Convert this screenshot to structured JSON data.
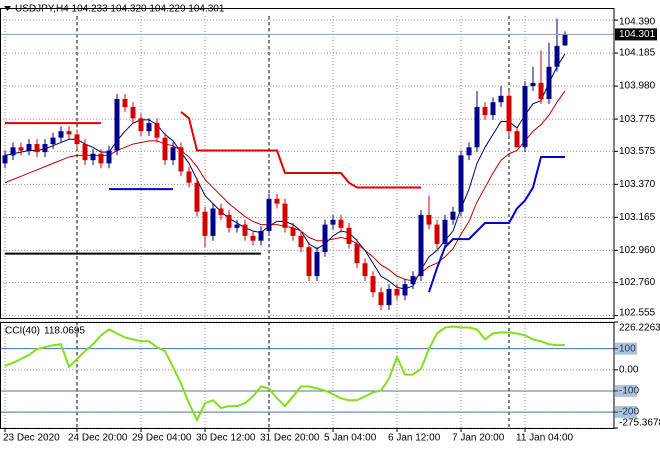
{
  "chart_data": [
    {
      "type": "candlestick",
      "title": "USDJPY,H4 104.233 104.320 104.229 104.301",
      "categories": [
        "23 Dec 2020",
        null,
        null,
        null,
        null,
        null,
        null,
        null,
        null,
        "24 Dec 20:00",
        null,
        null,
        null,
        null,
        null,
        null,
        null,
        "29 Dec 04:00",
        null,
        null,
        null,
        null,
        null,
        null,
        null,
        "30 Dec 12:00",
        null,
        null,
        null,
        null,
        null,
        null,
        null,
        "31 Dec 20:00",
        null,
        null,
        null,
        null,
        null,
        null,
        null,
        "5 Jan 04:00",
        null,
        null,
        null,
        null,
        null,
        null,
        null,
        "6 Jan 12:00",
        null,
        null,
        null,
        null,
        null,
        null,
        null,
        "7 Jan 20:00",
        null,
        null,
        null,
        null,
        null,
        null,
        null,
        "11 Jan 04:00",
        null,
        null,
        null,
        null,
        null
      ],
      "open": [
        103.5,
        103.55,
        103.6,
        103.58,
        103.62,
        103.57,
        103.62,
        103.66,
        103.7,
        103.68,
        103.62,
        103.52,
        103.56,
        103.5,
        103.58,
        103.9,
        103.85,
        103.78,
        103.7,
        103.75,
        103.66,
        103.52,
        103.6,
        103.45,
        103.38,
        103.2,
        103.05,
        103.22,
        103.18,
        103.1,
        103.12,
        103.05,
        103.02,
        103.08,
        103.28,
        103.25,
        103.1,
        103.05,
        102.98,
        102.8,
        102.95,
        103.12,
        103.15,
        103.1,
        103.0,
        102.88,
        102.8,
        102.7,
        102.62,
        102.72,
        102.68,
        102.75,
        102.8,
        103.18,
        103.12,
        103.0,
        103.15,
        103.2,
        103.55,
        103.6,
        103.85,
        103.8,
        103.88,
        103.92,
        103.7,
        103.6,
        103.98,
        104.0,
        103.9,
        104.1,
        104.233
      ],
      "high": [
        103.58,
        103.63,
        103.63,
        103.65,
        103.65,
        103.65,
        103.69,
        103.73,
        103.73,
        103.71,
        103.65,
        103.59,
        103.59,
        103.61,
        103.93,
        103.93,
        103.88,
        103.81,
        103.78,
        103.78,
        103.69,
        103.63,
        103.63,
        103.48,
        103.41,
        103.23,
        103.25,
        103.25,
        103.21,
        103.15,
        103.15,
        103.08,
        103.11,
        103.31,
        103.31,
        103.28,
        103.13,
        103.08,
        103.01,
        102.98,
        103.15,
        103.18,
        103.18,
        103.13,
        103.03,
        102.91,
        102.83,
        102.73,
        102.75,
        102.75,
        102.78,
        102.83,
        103.21,
        103.3,
        103.15,
        103.18,
        103.23,
        103.58,
        103.63,
        103.95,
        103.88,
        103.91,
        103.98,
        103.95,
        103.73,
        104.01,
        104.1,
        104.2,
        104.25,
        104.4,
        104.32
      ],
      "low": [
        103.47,
        103.52,
        103.55,
        103.55,
        103.54,
        103.54,
        103.59,
        103.63,
        103.65,
        103.59,
        103.49,
        103.49,
        103.47,
        103.47,
        103.55,
        103.82,
        103.75,
        103.67,
        103.67,
        103.63,
        103.49,
        103.49,
        103.42,
        103.35,
        103.17,
        102.98,
        103.02,
        103.15,
        103.07,
        103.07,
        103.02,
        102.99,
        102.99,
        103.05,
        103.22,
        103.07,
        103.02,
        102.95,
        102.77,
        102.77,
        102.92,
        103.09,
        103.07,
        102.97,
        102.85,
        102.77,
        102.67,
        102.59,
        102.59,
        102.65,
        102.65,
        102.72,
        102.77,
        103.09,
        102.97,
        102.97,
        103.12,
        103.17,
        103.52,
        103.57,
        103.77,
        103.77,
        103.85,
        103.67,
        103.6,
        103.57,
        103.95,
        103.87,
        103.87,
        104.07,
        104.229
      ],
      "close": [
        103.55,
        103.6,
        103.58,
        103.62,
        103.57,
        103.62,
        103.66,
        103.7,
        103.68,
        103.62,
        103.52,
        103.56,
        103.5,
        103.58,
        103.9,
        103.85,
        103.78,
        103.7,
        103.75,
        103.66,
        103.52,
        103.6,
        103.45,
        103.38,
        103.2,
        103.05,
        103.22,
        103.18,
        103.1,
        103.12,
        103.05,
        103.02,
        103.08,
        103.28,
        103.25,
        103.1,
        103.05,
        102.98,
        102.8,
        102.95,
        103.12,
        103.15,
        103.1,
        103.0,
        102.88,
        102.8,
        102.7,
        102.62,
        102.72,
        102.68,
        102.75,
        102.8,
        103.18,
        103.12,
        103.0,
        103.15,
        103.2,
        103.55,
        103.6,
        103.85,
        103.8,
        103.88,
        103.92,
        103.7,
        103.6,
        103.98,
        104.0,
        103.9,
        104.1,
        104.23,
        104.301
      ],
      "up_color": "#00008b",
      "down_color": "#d40000",
      "series": [
        {
          "color": "#00006e",
          "width": 1,
          "values": [
            103.55,
            103.56,
            103.57,
            103.58,
            103.58,
            103.59,
            103.61,
            103.63,
            103.65,
            103.65,
            103.62,
            103.6,
            103.57,
            103.57,
            103.64,
            103.7,
            103.75,
            103.77,
            103.77,
            103.74,
            103.68,
            103.64,
            103.57,
            103.5,
            103.4,
            103.3,
            103.25,
            103.2,
            103.16,
            103.13,
            103.1,
            103.08,
            103.07,
            103.11,
            103.14,
            103.14,
            103.12,
            103.08,
            103.0,
            102.97,
            103.0,
            103.05,
            103.08,
            103.07,
            103.02,
            102.96,
            102.88,
            102.8,
            102.77,
            102.73,
            102.72,
            102.74,
            102.84,
            102.92,
            102.96,
            103.02,
            103.08,
            103.22,
            103.34,
            103.5,
            103.6,
            103.68,
            103.76,
            103.76,
            103.72,
            103.8,
            103.87,
            103.89,
            104.0,
            104.1,
            104.18
          ]
        },
        {
          "color": "#c00000",
          "width": 1,
          "values": [
            103.38,
            103.4,
            103.42,
            103.44,
            103.46,
            103.48,
            103.5,
            103.52,
            103.54,
            103.55,
            103.55,
            103.55,
            103.55,
            103.55,
            103.58,
            103.6,
            103.62,
            103.63,
            103.64,
            103.64,
            103.62,
            103.61,
            103.58,
            103.54,
            103.48,
            103.4,
            103.35,
            103.3,
            103.25,
            103.21,
            103.17,
            103.14,
            103.12,
            103.12,
            103.12,
            103.11,
            103.1,
            103.08,
            103.04,
            103.02,
            103.02,
            103.03,
            103.04,
            103.03,
            103.0,
            102.96,
            102.92,
            102.87,
            102.84,
            102.8,
            102.78,
            102.77,
            102.82,
            102.86,
            102.88,
            102.92,
            102.97,
            103.06,
            103.14,
            103.26,
            103.35,
            103.44,
            103.52,
            103.56,
            103.58,
            103.64,
            103.7,
            103.74,
            103.8,
            103.88,
            103.95
          ]
        },
        {
          "color": "#e00000",
          "width": 2,
          "values": [
            103.75,
            103.75,
            103.75,
            103.75,
            103.75,
            103.75,
            103.75,
            103.75,
            103.75,
            103.75,
            103.75,
            103.75,
            103.75,
            null,
            null,
            null,
            null,
            null,
            null,
            null,
            null,
            null,
            103.82,
            103.78,
            103.58,
            103.58,
            103.58,
            103.58,
            103.58,
            103.58,
            103.58,
            103.58,
            103.58,
            103.58,
            103.58,
            103.44,
            103.44,
            103.44,
            103.44,
            103.44,
            103.44,
            103.44,
            103.44,
            103.38,
            103.35,
            103.35,
            103.35,
            103.35,
            103.35,
            103.35,
            103.35,
            103.35,
            103.35,
            null,
            null,
            null,
            null,
            null,
            null,
            null,
            null,
            null,
            null,
            null,
            null,
            null,
            null,
            null,
            null,
            null,
            null
          ]
        },
        {
          "color": "#0000cc",
          "width": 2,
          "values": [
            null,
            null,
            null,
            null,
            null,
            null,
            null,
            null,
            null,
            null,
            null,
            null,
            null,
            103.34,
            103.34,
            103.34,
            103.34,
            103.34,
            103.34,
            103.34,
            103.34,
            103.34,
            null,
            null,
            null,
            null,
            null,
            null,
            null,
            null,
            null,
            null,
            null,
            null,
            null,
            null,
            null,
            null,
            null,
            null,
            null,
            null,
            null,
            null,
            null,
            null,
            null,
            null,
            null,
            null,
            null,
            null,
            null,
            102.7,
            102.85,
            102.98,
            103.03,
            103.03,
            103.03,
            103.08,
            103.13,
            103.13,
            103.13,
            103.13,
            103.22,
            103.27,
            103.35,
            103.54,
            103.54,
            103.54,
            103.54
          ]
        },
        {
          "color": "#000000",
          "width": 2,
          "values": [
            102.94,
            102.94,
            102.94,
            102.94,
            102.94,
            102.94,
            102.94,
            102.94,
            102.94,
            102.94,
            102.94,
            102.94,
            102.94,
            102.94,
            102.94,
            102.94,
            102.94,
            102.94,
            102.94,
            102.94,
            102.94,
            102.94,
            102.94,
            102.94,
            102.94,
            102.94,
            102.94,
            102.94,
            102.94,
            102.94,
            102.94,
            102.94,
            102.94,
            null,
            null,
            null,
            null,
            null,
            null,
            null,
            null,
            null,
            null,
            null,
            null,
            null,
            null,
            null,
            null,
            null,
            null,
            null,
            null,
            null,
            null,
            null,
            null,
            null,
            null,
            null,
            null,
            null,
            null,
            null,
            null,
            null,
            null,
            null,
            null,
            null,
            null
          ]
        }
      ],
      "last_price": {
        "value": 104.301,
        "label": "104.301"
      },
      "ylim": [
        102.54,
        104.465
      ],
      "yticks": [
        {
          "value": 104.39,
          "label": "104.390"
        },
        {
          "value": 104.185,
          "label": "104.185"
        },
        {
          "value": 103.98,
          "label": "103.980"
        },
        {
          "value": 103.775,
          "label": "103.775"
        },
        {
          "value": 103.575,
          "label": "103.575"
        },
        {
          "value": 103.37,
          "label": "103.370"
        },
        {
          "value": 103.165,
          "label": "103.165"
        },
        {
          "value": 102.96,
          "label": "102.960"
        },
        {
          "value": 102.76,
          "label": "102.760"
        },
        {
          "value": 102.555,
          "label": "102.555"
        }
      ],
      "grid": true
    },
    {
      "type": "line",
      "title": "CCI(40)",
      "color": "#7fe01a",
      "values": [
        19,
        33,
        51,
        70,
        98,
        107,
        116,
        121,
        14,
        51,
        88,
        121,
        163,
        191,
        172,
        153,
        144,
        135,
        135,
        107,
        88,
        14,
        -65,
        -158,
        -237,
        -158,
        -144,
        -181,
        -172,
        -172,
        -158,
        -126,
        -79,
        -88,
        -135,
        -172,
        -126,
        -79,
        -79,
        -88,
        -98,
        -116,
        -135,
        -144,
        -144,
        -126,
        -107,
        -98,
        -42,
        60,
        -23,
        -23,
        5,
        98,
        172,
        200,
        205,
        200,
        200,
        191,
        144,
        172,
        177,
        177,
        172,
        163,
        144,
        135,
        121,
        116,
        118.0695
      ],
      "levels": [
        100,
        -100,
        -200
      ],
      "ylim": [
        -275.3678,
        226.2263
      ],
      "yticks": [
        226.2263,
        100,
        {
          "value": 0,
          "label": "0.00"
        },
        -100,
        -200,
        -275.3678
      ],
      "grid": true
    }
  ]
}
